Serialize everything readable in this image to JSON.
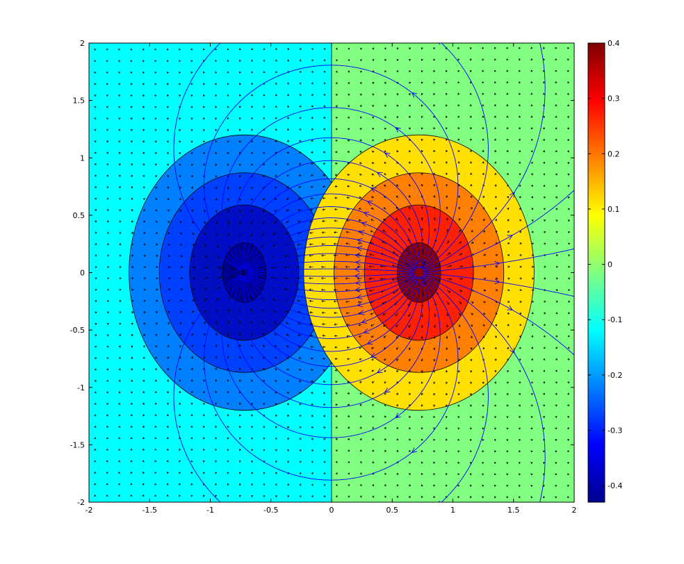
{
  "chart_data": {
    "type": "heatmap",
    "plot_kind": "filled contour with quiver arrows and streamlines (dipole field)",
    "title": "",
    "xlabel": "",
    "ylabel": "",
    "xlim": [
      -2,
      2
    ],
    "ylim": [
      -2,
      2
    ],
    "x_ticks": [
      -2,
      -1.5,
      -1,
      -0.5,
      0,
      0.5,
      1,
      1.5,
      2
    ],
    "y_ticks": [
      -2,
      -1.5,
      -1,
      -0.5,
      0,
      0.5,
      1,
      1.5,
      2
    ],
    "x_tick_labels": [
      "-2",
      "-1.5",
      "-1",
      "-0.5",
      "0",
      "0.5",
      "1",
      "1.5",
      "2"
    ],
    "y_tick_labels": [
      "-2",
      "-1.5",
      "-1",
      "-0.5",
      "0",
      "0.5",
      "1",
      "1.5",
      "2"
    ],
    "colormap": "jet",
    "colorbar": {
      "range": [
        -0.43,
        0.4
      ],
      "ticks": [
        0.4,
        0.3,
        0.2,
        0.1,
        0,
        -0.1,
        -0.2,
        -0.3,
        -0.4
      ],
      "tick_labels": [
        "0.4",
        "0.3",
        "0.2",
        "0.1",
        "0",
        "-0.1",
        "-0.2",
        "-0.3",
        "-0.4"
      ],
      "placement": "right"
    },
    "sources": [
      {
        "sign": "negative",
        "center": [
          -0.72,
          0
        ]
      },
      {
        "sign": "positive",
        "center": [
          0.72,
          0
        ]
      }
    ],
    "contour_regions": [
      {
        "side": "left",
        "color": "#00ffff",
        "level": -0.1,
        "semi_axis_x": null,
        "semi_axis_y": null,
        "note": "background region x < 0"
      },
      {
        "side": "left",
        "color": "#0080ff",
        "level": -0.2,
        "semi_axis_x": 0.95,
        "semi_axis_y": 1.2
      },
      {
        "side": "left",
        "color": "#0040ff",
        "level": -0.28,
        "semi_axis_x": 0.7,
        "semi_axis_y": 0.87
      },
      {
        "side": "left",
        "color": "#0010c0",
        "level": -0.35,
        "semi_axis_x": 0.45,
        "semi_axis_y": 0.59
      },
      {
        "side": "left",
        "color": "#000090",
        "level": -0.42,
        "semi_axis_x": 0.18,
        "semi_axis_y": 0.26
      },
      {
        "side": "right",
        "color": "#80ff80",
        "level": 0.0,
        "semi_axis_x": null,
        "semi_axis_y": null,
        "note": "background region x > 0"
      },
      {
        "side": "right",
        "color": "#ffe000",
        "level": 0.12,
        "semi_axis_x": 0.95,
        "semi_axis_y": 1.2
      },
      {
        "side": "right",
        "color": "#ff8000",
        "level": 0.2,
        "semi_axis_x": 0.7,
        "semi_axis_y": 0.87
      },
      {
        "side": "right",
        "color": "#ff2000",
        "level": 0.28,
        "semi_axis_x": 0.45,
        "semi_axis_y": 0.59
      },
      {
        "side": "right",
        "color": "#8b0000",
        "level": 0.38,
        "semi_axis_x": 0.18,
        "semi_axis_y": 0.26
      }
    ],
    "grid": false,
    "legend": "none",
    "streamline_color": "#0000ff",
    "arrow_color": "#000000"
  }
}
